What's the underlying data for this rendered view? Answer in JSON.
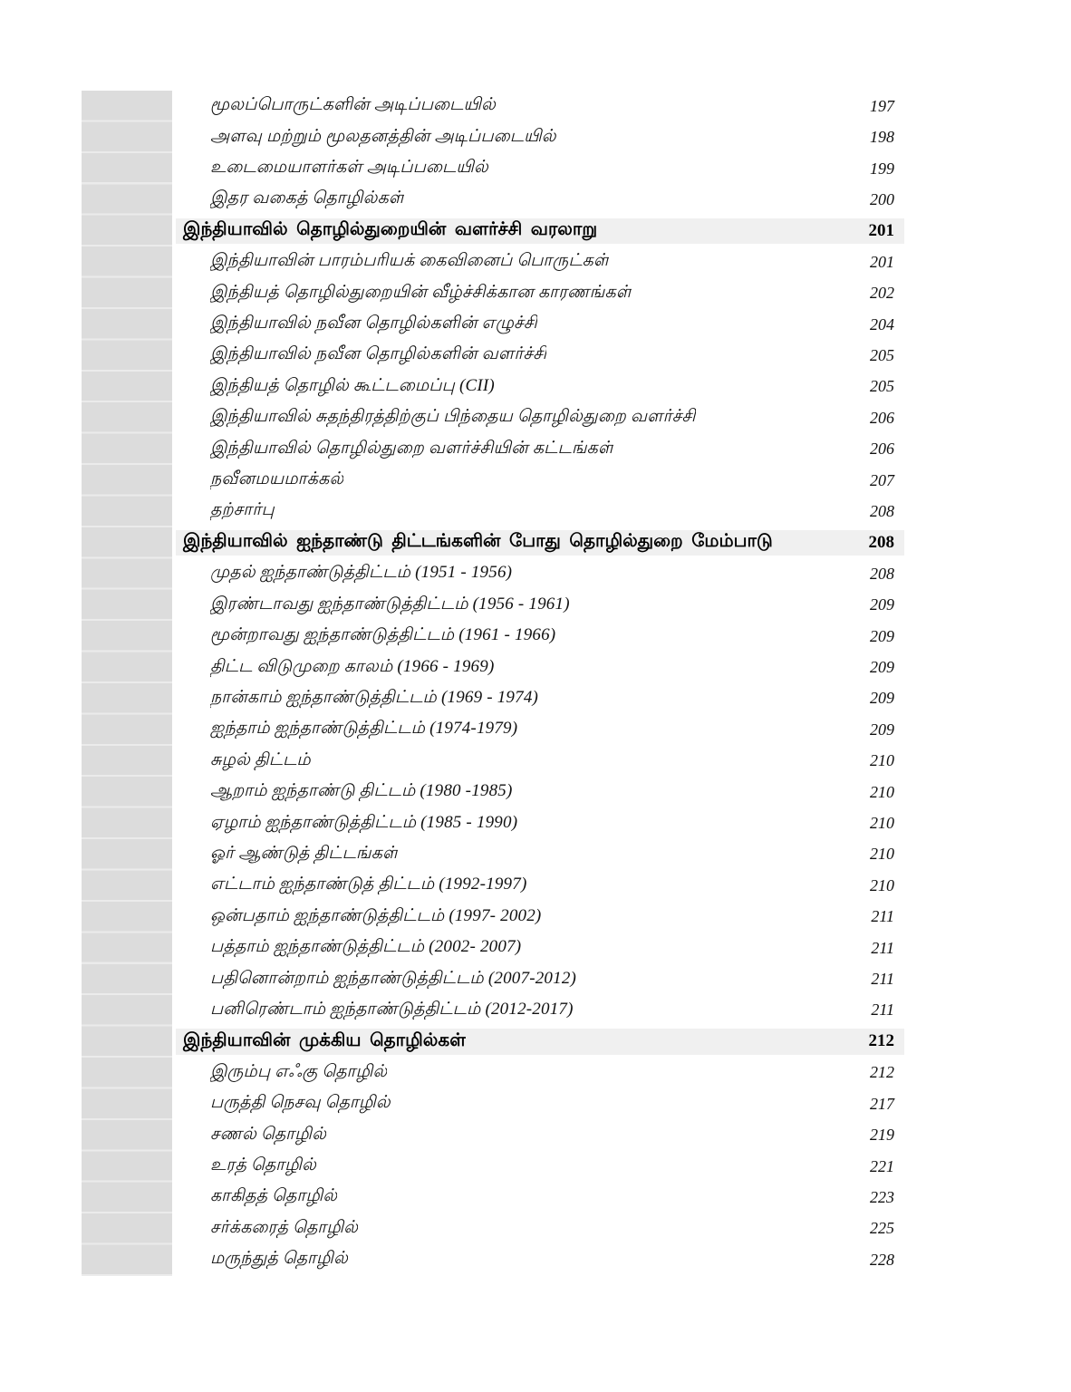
{
  "page": {
    "kind_label": "table-of-contents",
    "background_color": "#ffffff",
    "margin_strip_color": "#dcdcdc",
    "margin_strip_separator_color": "#ebebeb",
    "section_band_color": "#f0f0f0",
    "text_color": "#111111"
  },
  "toc": {
    "entries": [
      {
        "type": "sub",
        "label": "மூலப்பொருட்களின் அடிப்படையில்",
        "page": "197"
      },
      {
        "type": "sub",
        "label": "அளவு மற்றும் மூலதனத்தின் அடிப்படையில்",
        "page": "198"
      },
      {
        "type": "sub",
        "label": "உடைமையாளர்கள் அடிப்படையில்",
        "page": "199"
      },
      {
        "type": "sub",
        "label": "இதர வகைத் தொழில்கள்",
        "page": "200"
      },
      {
        "type": "section",
        "label": "இந்தியாவில் தொழில்துறையின் வளர்ச்சி வரலாறு",
        "page": "201"
      },
      {
        "type": "sub",
        "label": "இந்தியாவின் பாரம்பரியக் கைவினைப் பொருட்கள்",
        "page": "201"
      },
      {
        "type": "sub",
        "label": "இந்தியத் தொழில்துறையின் வீழ்ச்சிக்கான காரணங்கள்",
        "page": "202"
      },
      {
        "type": "sub",
        "label": "இந்தியாவில் நவீன தொழில்களின் எழுச்சி",
        "page": "204"
      },
      {
        "type": "sub",
        "label": "இந்தியாவில் நவீன தொழில்களின் வளர்ச்சி",
        "page": "205"
      },
      {
        "type": "sub",
        "label": "இந்தியத் தொழில் கூட்டமைப்பு (CII)",
        "page": "205"
      },
      {
        "type": "sub",
        "label": "இந்தியாவில் சுதந்திரத்திற்குப் பிந்தைய தொழில்துறை வளர்ச்சி",
        "page": "206"
      },
      {
        "type": "sub",
        "label": "இந்தியாவில் தொழில்துறை வளர்ச்சியின் கட்டங்கள்",
        "page": "206"
      },
      {
        "type": "sub",
        "label": "நவீனமயமாக்கல்",
        "page": "207"
      },
      {
        "type": "sub",
        "label": "தற்சார்பு",
        "page": "208"
      },
      {
        "type": "section",
        "label": "இந்தியாவில் ஐந்தாண்டு திட்டங்களின் போது தொழில்துறை மேம்பாடு",
        "page": "208"
      },
      {
        "type": "sub",
        "label": "முதல் ஐந்தாண்டுத்திட்டம் (1951 - 1956)",
        "page": "208"
      },
      {
        "type": "sub",
        "label": "இரண்டாவது ஐந்தாண்டுத்திட்டம் (1956 - 1961)",
        "page": "209"
      },
      {
        "type": "sub",
        "label": "மூன்றாவது ஐந்தாண்டுத்திட்டம் (1961 - 1966)",
        "page": "209"
      },
      {
        "type": "sub",
        "label": "திட்ட விடுமுறை காலம் (1966 - 1969)",
        "page": "209"
      },
      {
        "type": "sub",
        "label": "நான்காம் ஐந்தாண்டுத்திட்டம் (1969 - 1974)",
        "page": "209"
      },
      {
        "type": "sub",
        "label": "ஐந்தாம் ஐந்தாண்டுத்திட்டம் (1974-1979)",
        "page": "209"
      },
      {
        "type": "sub",
        "label": "சுழல் திட்டம்",
        "page": "210"
      },
      {
        "type": "sub",
        "label": "ஆறாம் ஐந்தாண்டு திட்டம் (1980 -1985)",
        "page": "210"
      },
      {
        "type": "sub",
        "label": "ஏழாம் ஐந்தாண்டுத்திட்டம் (1985 - 1990)",
        "page": "210"
      },
      {
        "type": "sub",
        "label": "ஓர் ஆண்டுத் திட்டங்கள்",
        "page": "210"
      },
      {
        "type": "sub",
        "label": "எட்டாம் ஐந்தாண்டுத் திட்டம் (1992-1997)",
        "page": "210"
      },
      {
        "type": "sub",
        "label": "ஒன்பதாம் ஐந்தாண்டுத்திட்டம் (1997- 2002)",
        "page": "211"
      },
      {
        "type": "sub",
        "label": "பத்தாம் ஐந்தாண்டுத்திட்டம் (2002- 2007)",
        "page": "211"
      },
      {
        "type": "sub",
        "label": "பதினொன்றாம் ஐந்தாண்டுத்திட்டம் (2007-2012)",
        "page": "211"
      },
      {
        "type": "sub",
        "label": "பனிரெண்டாம் ஐந்தாண்டுத்திட்டம் (2012-2017)",
        "page": "211"
      },
      {
        "type": "section",
        "label": "இந்தியாவின் முக்கிய தொழில்கள்",
        "page": "212"
      },
      {
        "type": "sub",
        "label": "இரும்பு எஃகு தொழில்",
        "page": "212"
      },
      {
        "type": "sub",
        "label": "பருத்தி நெசவு தொழில்",
        "page": "217"
      },
      {
        "type": "sub",
        "label": "சணல் தொழில்",
        "page": "219"
      },
      {
        "type": "sub",
        "label": "உரத் தொழில்",
        "page": "221"
      },
      {
        "type": "sub",
        "label": "காகிதத் தொழில்",
        "page": "223"
      },
      {
        "type": "sub",
        "label": "சர்க்கரைத் தொழில்",
        "page": "225"
      },
      {
        "type": "sub",
        "label": "மருந்துத் தொழில்",
        "page": "228"
      }
    ]
  }
}
